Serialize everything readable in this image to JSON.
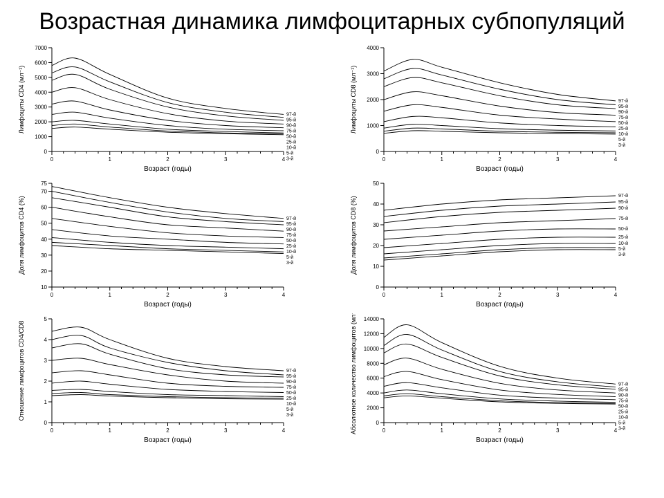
{
  "page_title": "Возрастная динамика лимфоцитарных субпопуляций",
  "title_fontsize": 34,
  "background_color": "#ffffff",
  "text_color": "#000000",
  "common": {
    "x_axis_label": "Возраст (годы)",
    "x_axis_label_fontsize": 10,
    "xlim": [
      0,
      4
    ],
    "xticks": [
      0,
      1,
      2,
      3,
      4
    ],
    "minor_xticks_per_major": 4,
    "series_legend_labels": [
      "97-й",
      "95-й",
      "90-й",
      "75-й",
      "50-й",
      "25-й",
      "10-й",
      "5-й",
      "3-й"
    ],
    "series_legend_fontsize": 7,
    "line_color": "#000000",
    "line_width": 0.9,
    "axis_color": "#000000",
    "yaxis_label_fontsize": 9
  },
  "panels": [
    {
      "id": "p1",
      "type": "line",
      "y_label": "Лимфоциты CD4 (мл⁻¹)",
      "ylim": [
        0,
        7000
      ],
      "yticks": [
        0,
        1000,
        2000,
        3000,
        4000,
        5000,
        6000,
        7000
      ],
      "ytick_labels": [
        "0",
        "1000",
        "2000",
        "3000",
        "4000",
        "5000",
        "6000",
        "7000"
      ],
      "shape": "decay",
      "series_y_at_x": {
        "x": [
          0.0,
          0.4,
          1.0,
          2.0,
          3.0,
          4.0
        ],
        "97": [
          5800,
          6300,
          5200,
          3600,
          2900,
          2500
        ],
        "95": [
          5300,
          5700,
          4700,
          3300,
          2650,
          2300
        ],
        "90": [
          4800,
          5200,
          4200,
          3000,
          2400,
          2100
        ],
        "75": [
          4000,
          4300,
          3500,
          2550,
          2050,
          1850
        ],
        "50": [
          3200,
          3400,
          2800,
          2100,
          1750,
          1600
        ],
        "25": [
          2500,
          2650,
          2250,
          1750,
          1500,
          1400
        ],
        "10": [
          2000,
          2100,
          1850,
          1500,
          1350,
          1250
        ],
        "5": [
          1750,
          1850,
          1650,
          1380,
          1250,
          1180
        ],
        "3": [
          1550,
          1650,
          1500,
          1300,
          1200,
          1130
        ]
      }
    },
    {
      "id": "p2",
      "type": "line",
      "y_label": "Лимфоциты CD8 (мл⁻¹)",
      "ylim": [
        0,
        4000
      ],
      "yticks": [
        0,
        1000,
        2000,
        3000,
        4000
      ],
      "ytick_labels": [
        "0",
        "1000",
        "2000",
        "3000",
        "4000"
      ],
      "shape": "decay",
      "series_y_at_x": {
        "x": [
          0.0,
          0.5,
          1.0,
          2.0,
          3.0,
          4.0
        ],
        "97": [
          3100,
          3550,
          3250,
          2650,
          2200,
          1950
        ],
        "95": [
          2800,
          3200,
          2950,
          2400,
          2000,
          1800
        ],
        "90": [
          2500,
          2850,
          2650,
          2150,
          1800,
          1650
        ],
        "75": [
          2000,
          2300,
          2150,
          1750,
          1500,
          1400
        ],
        "50": [
          1550,
          1800,
          1700,
          1400,
          1250,
          1150
        ],
        "25": [
          1150,
          1350,
          1300,
          1100,
          1000,
          950
        ],
        "10": [
          900,
          1050,
          1000,
          880,
          820,
          790
        ],
        "5": [
          780,
          900,
          870,
          780,
          740,
          720
        ],
        "3": [
          700,
          800,
          780,
          720,
          690,
          670
        ]
      }
    },
    {
      "id": "p3",
      "type": "line",
      "y_label": "Доля лимфоцитов CD4 (%)",
      "ylim": [
        10,
        75
      ],
      "yticks": [
        10,
        20,
        30,
        40,
        50,
        60,
        70,
        75
      ],
      "ytick_labels": [
        "10",
        "20",
        "30",
        "40",
        "50",
        "60",
        "70",
        "75"
      ],
      "shape": "gentle-decline",
      "series_y_at_x": {
        "x": [
          0.0,
          1.0,
          2.0,
          3.0,
          4.0
        ],
        "97": [
          73,
          66,
          60,
          56,
          53
        ],
        "95": [
          70,
          63,
          57,
          53,
          51
        ],
        "90": [
          66,
          60,
          54,
          51,
          49
        ],
        "75": [
          60,
          54,
          49,
          47,
          45
        ],
        "50": [
          53,
          48,
          44,
          42,
          41
        ],
        "25": [
          46,
          42,
          40,
          38,
          37
        ],
        "10": [
          41,
          38,
          36,
          35,
          34
        ],
        "5": [
          38,
          36,
          34,
          33,
          32
        ],
        "3": [
          36,
          34,
          33,
          32,
          31
        ]
      }
    },
    {
      "id": "p4",
      "type": "line",
      "y_label": "Доля лимфоцитов CD8 (%)",
      "ylim": [
        0,
        50
      ],
      "yticks": [
        0,
        10,
        20,
        30,
        40,
        50
      ],
      "ytick_labels": [
        "0",
        "10",
        "20",
        "30",
        "40",
        "50"
      ],
      "shape": "gentle-rise",
      "series_y_at_x": {
        "x": [
          0.0,
          1.0,
          2.0,
          3.0,
          4.0
        ],
        "97": [
          37,
          40,
          42,
          43,
          44
        ],
        "95": [
          34,
          37,
          39,
          40,
          41
        ],
        "90": [
          31,
          34,
          36,
          37,
          38
        ],
        "75": [
          27,
          29,
          31,
          32,
          33
        ],
        "50": [
          23,
          25,
          27,
          28,
          28
        ],
        "25": [
          19,
          21,
          23,
          24,
          24
        ],
        "10": [
          16,
          18,
          20,
          21,
          21
        ],
        "5": [
          14,
          16,
          18,
          19,
          19
        ],
        "3": [
          13,
          15,
          17,
          18,
          18
        ]
      }
    },
    {
      "id": "p5",
      "type": "line",
      "y_label": "Отношение лимфоцитов CD4/CD8",
      "ylim": [
        0,
        5
      ],
      "yticks": [
        0,
        1,
        2,
        3,
        4,
        5
      ],
      "ytick_labels": [
        "0",
        "1",
        "2",
        "3",
        "4",
        "5"
      ],
      "shape": "mild-decay",
      "series_y_at_x": {
        "x": [
          0.0,
          0.5,
          1.0,
          2.0,
          3.0,
          4.0
        ],
        "97": [
          4.4,
          4.6,
          4.0,
          3.1,
          2.7,
          2.5
        ],
        "95": [
          4.0,
          4.2,
          3.6,
          2.9,
          2.5,
          2.3
        ],
        "90": [
          3.6,
          3.8,
          3.3,
          2.6,
          2.3,
          2.2
        ],
        "75": [
          3.0,
          3.1,
          2.8,
          2.3,
          2.0,
          1.9
        ],
        "50": [
          2.4,
          2.5,
          2.3,
          1.9,
          1.75,
          1.7
        ],
        "25": [
          1.9,
          2.0,
          1.85,
          1.6,
          1.5,
          1.45
        ],
        "10": [
          1.55,
          1.6,
          1.5,
          1.35,
          1.3,
          1.25
        ],
        "5": [
          1.4,
          1.45,
          1.35,
          1.25,
          1.2,
          1.18
        ],
        "3": [
          1.3,
          1.35,
          1.28,
          1.2,
          1.15,
          1.13
        ]
      }
    },
    {
      "id": "p6",
      "type": "line",
      "y_label": "Абсолютное количество лимфоцитов (мл⁻¹)",
      "ylim": [
        0,
        14000
      ],
      "yticks": [
        0,
        2000,
        4000,
        6000,
        8000,
        10000,
        12000,
        14000
      ],
      "ytick_labels": [
        "0",
        "2000",
        "4000",
        "6000",
        "8000",
        "10000",
        "12000",
        "14000"
      ],
      "shape": "decay",
      "series_y_at_x": {
        "x": [
          0.0,
          0.4,
          1.0,
          2.0,
          3.0,
          4.0
        ],
        "97": [
          11500,
          13200,
          10800,
          7600,
          6000,
          5200
        ],
        "95": [
          10400,
          11900,
          9800,
          6900,
          5500,
          4800
        ],
        "90": [
          9400,
          10600,
          8800,
          6300,
          5100,
          4500
        ],
        "75": [
          7800,
          8700,
          7200,
          5300,
          4400,
          4000
        ],
        "50": [
          6200,
          6900,
          5800,
          4400,
          3800,
          3500
        ],
        "25": [
          4900,
          5400,
          4700,
          3700,
          3300,
          3100
        ],
        "10": [
          4000,
          4400,
          3900,
          3200,
          2900,
          2750
        ],
        "5": [
          3600,
          3900,
          3500,
          2950,
          2700,
          2600
        ],
        "3": [
          3350,
          3600,
          3300,
          2800,
          2600,
          2500
        ]
      }
    }
  ]
}
